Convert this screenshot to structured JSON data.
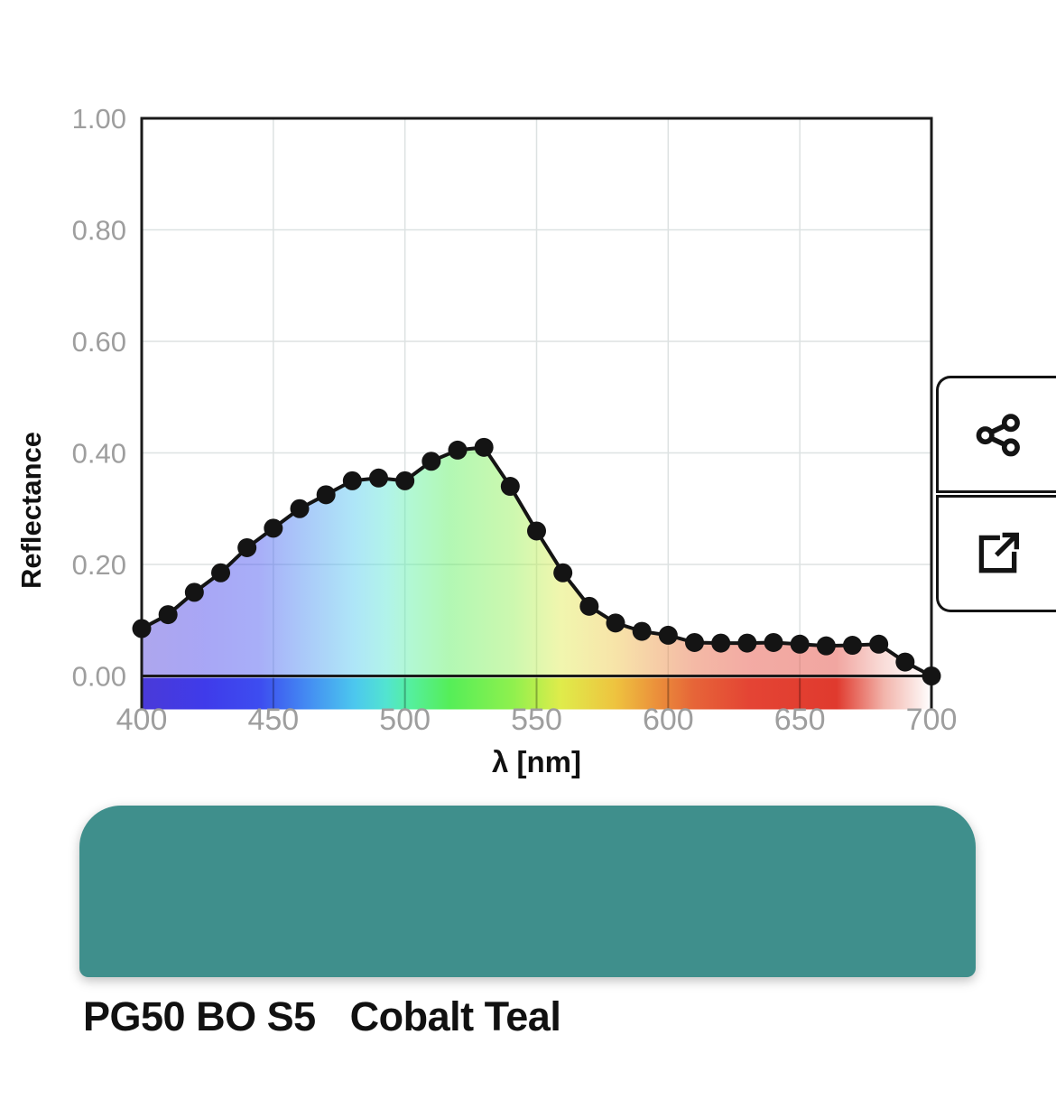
{
  "chart_data": {
    "type": "line",
    "title": "",
    "xlabel": "λ [nm]",
    "ylabel": "Reflectance",
    "x": [
      400,
      410,
      420,
      430,
      440,
      450,
      460,
      470,
      480,
      490,
      500,
      510,
      520,
      530,
      540,
      550,
      560,
      570,
      580,
      590,
      600,
      610,
      620,
      630,
      640,
      650,
      660,
      670,
      680,
      690,
      700
    ],
    "values": [
      0.085,
      0.11,
      0.15,
      0.185,
      0.23,
      0.265,
      0.3,
      0.325,
      0.35,
      0.355,
      0.35,
      0.385,
      0.405,
      0.41,
      0.34,
      0.26,
      0.185,
      0.125,
      0.095,
      0.08,
      0.073,
      0.06,
      0.059,
      0.059,
      0.06,
      0.057,
      0.054,
      0.055,
      0.057,
      0.025,
      0.0
    ],
    "xlim": [
      400,
      700
    ],
    "ylim": [
      0,
      1
    ],
    "x_ticks": [
      400,
      450,
      500,
      550,
      600,
      650,
      700
    ],
    "y_ticks": [
      0,
      0.2,
      0.4,
      0.6,
      0.8,
      1
    ],
    "y_tick_labels": [
      "0.00",
      "0.20",
      "0.40",
      "0.60",
      "0.80",
      "1.00"
    ],
    "grid": true,
    "legend_position": "none",
    "line_color": "#141414",
    "marker": "circle",
    "marker_color": "#141414",
    "tick_label_color": "#9E9E9E",
    "grid_color": "#DDE2E2",
    "axis_color": "#1A1A1A",
    "area_fill": "spectrum-gradient",
    "area_opacity": 0.45,
    "spectrum_gradient": [
      {
        "pos": 0.0,
        "color": "#4A3AD8"
      },
      {
        "pos": 0.08,
        "color": "#3F3BEA"
      },
      {
        "pos": 0.15,
        "color": "#3D4DF0"
      },
      {
        "pos": 0.21,
        "color": "#448CF2"
      },
      {
        "pos": 0.27,
        "color": "#4CC8EE"
      },
      {
        "pos": 0.31,
        "color": "#52E4D0"
      },
      {
        "pos": 0.34,
        "color": "#55EF9E"
      },
      {
        "pos": 0.39,
        "color": "#55EE58"
      },
      {
        "pos": 0.47,
        "color": "#8FF04E"
      },
      {
        "pos": 0.53,
        "color": "#DFEC4B"
      },
      {
        "pos": 0.6,
        "color": "#EEC33F"
      },
      {
        "pos": 0.65,
        "color": "#EB923B"
      },
      {
        "pos": 0.7,
        "color": "#E66438"
      },
      {
        "pos": 0.77,
        "color": "#E44434"
      },
      {
        "pos": 0.88,
        "color": "#E03A2E"
      },
      {
        "pos": 0.94,
        "color": "#F2B4AB"
      },
      {
        "pos": 1.0,
        "color": "#FFFFFF"
      }
    ]
  },
  "toolbar": {
    "share_icon": "share-icon",
    "open_icon": "external-link-icon",
    "share_label": "Share",
    "open_label": "Open external"
  },
  "pigment": {
    "code": "PG50 BO S5",
    "name": "Cobalt Teal",
    "swatch_color": "#3F8F8C"
  }
}
